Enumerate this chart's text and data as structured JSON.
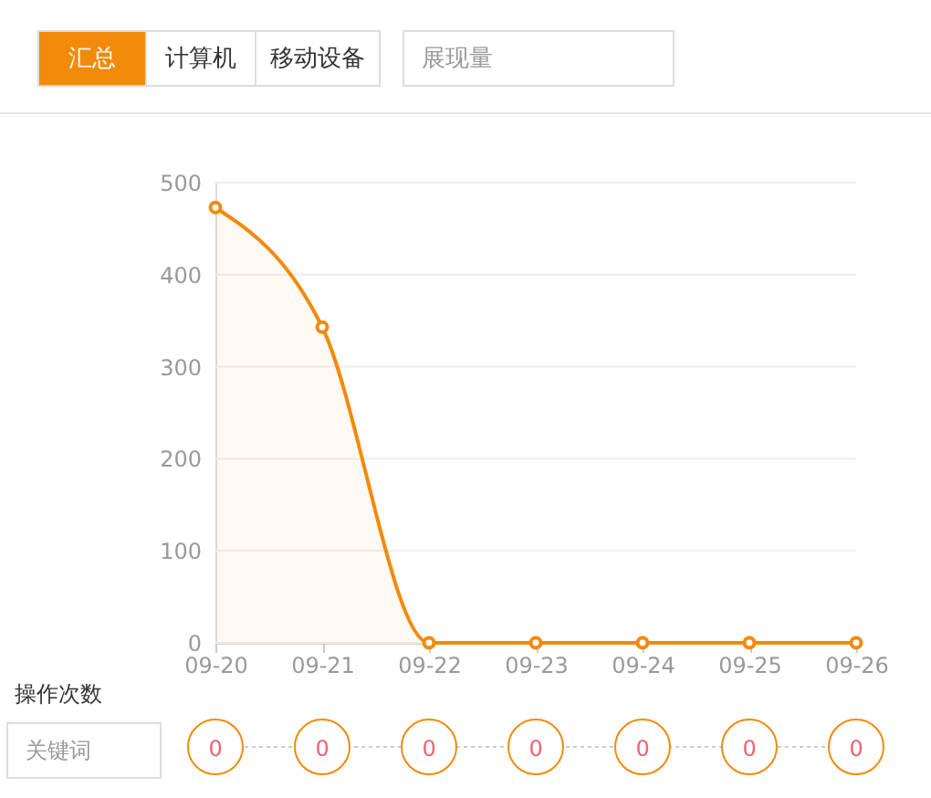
{
  "chart_data": [
    {
      "type": "area",
      "categories": [
        "09-20",
        "09-21",
        "09-22",
        "09-23",
        "09-24",
        "09-25",
        "09-26"
      ],
      "series": [
        {
          "color": "#f28a0a",
          "values": [
            473,
            343,
            0,
            0,
            0,
            0,
            0
          ]
        }
      ],
      "ylim": [
        0,
        500
      ],
      "yticks": [
        0,
        100,
        200,
        300,
        400,
        500
      ],
      "grid": "y",
      "marker": "circle",
      "line_style": "solid",
      "annotations": [
        "汇总",
        "计算机",
        "移动设备",
        "展现量"
      ]
    },
    {
      "type": "other",
      "title": "操作次数",
      "categories": [
        null,
        null,
        null,
        null,
        null,
        null,
        null
      ],
      "values": [
        0,
        0,
        0,
        0,
        0,
        0,
        0
      ],
      "color": "#f28a0a",
      "data_labels": true,
      "annotations": [
        "关键词"
      ]
    }
  ]
}
